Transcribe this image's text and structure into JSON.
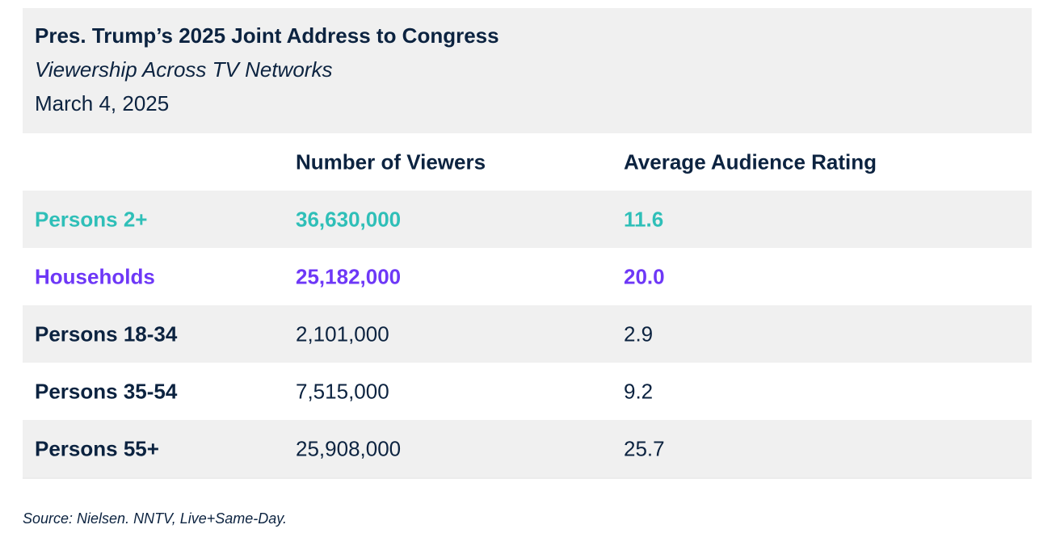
{
  "title": "Pres. Trump’s 2025 Joint Address to Congress",
  "subtitle": "Viewership Across TV Networks",
  "date": "March 4, 2025",
  "source": "Source: Nielsen. NNTV, Live+Same-Day.",
  "colors": {
    "text": "#0c2340",
    "persons2": "#2fbfb8",
    "households": "#6e38f7",
    "band": "#f0f0f0"
  },
  "chart_data": {
    "type": "table",
    "columns": [
      "",
      "Number of Viewers",
      "Average Audience Rating"
    ],
    "rows": [
      {
        "label": "Persons 2+",
        "viewers": "36,630,000",
        "rating": "11.6"
      },
      {
        "label": "Households",
        "viewers": "25,182,000",
        "rating": "20.0"
      },
      {
        "label": "Persons 18-34",
        "viewers": "2,101,000",
        "rating": "2.9"
      },
      {
        "label": "Persons 35-54",
        "viewers": "7,515,000",
        "rating": "9.2"
      },
      {
        "label": "Persons 55+",
        "viewers": "25,908,000",
        "rating": "25.7"
      }
    ]
  }
}
